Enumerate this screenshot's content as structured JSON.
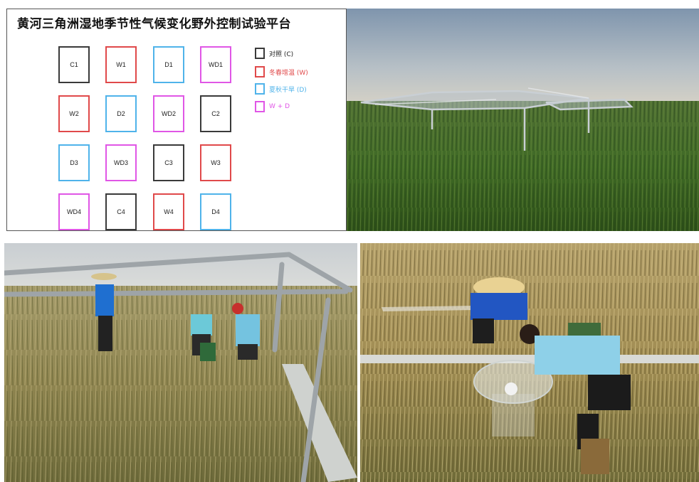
{
  "layout": {
    "title": "黄河三角洲湿地季节性气候变化野外控制试验平台",
    "colors": {
      "C": "#3a3a3a",
      "W": "#e0494a",
      "D": "#4fb3ea",
      "WD": "#e056e6"
    },
    "grid": [
      [
        {
          "label": "C1",
          "type": "C"
        },
        {
          "label": "W1",
          "type": "W"
        },
        {
          "label": "D1",
          "type": "D"
        },
        {
          "label": "WD1",
          "type": "WD"
        }
      ],
      [
        {
          "label": "W2",
          "type": "W"
        },
        {
          "label": "D2",
          "type": "D"
        },
        {
          "label": "WD2",
          "type": "WD"
        },
        {
          "label": "C2",
          "type": "C"
        }
      ],
      [
        {
          "label": "D3",
          "type": "D"
        },
        {
          "label": "WD3",
          "type": "WD"
        },
        {
          "label": "C3",
          "type": "C"
        },
        {
          "label": "W3",
          "type": "W"
        }
      ],
      [
        {
          "label": "WD4",
          "type": "WD"
        },
        {
          "label": "C4",
          "type": "C"
        },
        {
          "label": "W4",
          "type": "W"
        },
        {
          "label": "D4",
          "type": "D"
        }
      ]
    ],
    "legend": [
      {
        "label": "对照 (C)",
        "type": "C",
        "text_color": "#222222"
      },
      {
        "label": "冬春增温 (W)",
        "type": "W",
        "text_color": "#e0494a"
      },
      {
        "label": "夏秋干旱 (D)",
        "type": "D",
        "text_color": "#4fb3ea"
      },
      {
        "label": "W + D",
        "type": "WD",
        "text_color": "#e056e6"
      }
    ]
  },
  "photos": [
    {
      "name": "photo-wetland-shelters",
      "subject": "reed wetland with steel-frame rain-exclusion shelters under a hazy sky"
    },
    {
      "name": "photo-researchers-frame",
      "subject": "four researchers working inside a steel frame among tall dry grass"
    },
    {
      "name": "photo-researchers-chamber",
      "subject": "two researchers operating a transparent gas sampling chamber in dry reeds"
    }
  ]
}
